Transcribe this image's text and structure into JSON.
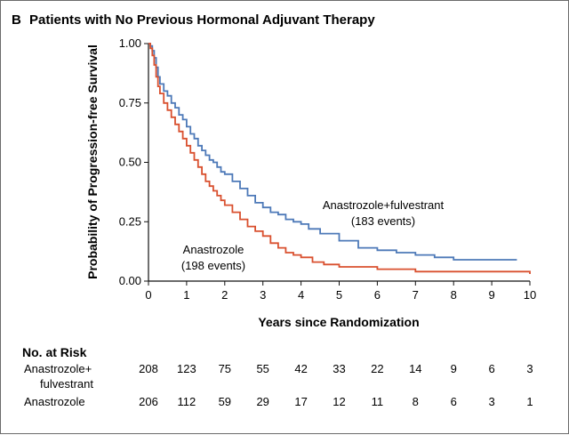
{
  "figure": {
    "panel_letter": "B",
    "title": "Patients with No Previous Hormonal Adjuvant Therapy"
  },
  "chart_data": {
    "type": "line",
    "title": "Patients with No Previous Hormonal Adjuvant Therapy",
    "xlabel": "Years since Randomization",
    "ylabel": "Probability of Progression-free Survival",
    "xlim": [
      0,
      10
    ],
    "ylim": [
      0,
      1
    ],
    "x_ticks": [
      "0",
      "1",
      "2",
      "3",
      "4",
      "5",
      "6",
      "7",
      "8",
      "9",
      "10"
    ],
    "y_ticks": [
      "0.00",
      "0.25",
      "0.50",
      "0.75",
      "1.00"
    ],
    "grid": false,
    "legend": "none",
    "series": [
      {
        "name": "Anastrozole+fulvestrant",
        "events_label": "(183 events)",
        "color": "#4d79b8",
        "x": [
          0,
          0.05,
          0.1,
          0.15,
          0.2,
          0.25,
          0.3,
          0.4,
          0.5,
          0.6,
          0.7,
          0.8,
          0.9,
          1.0,
          1.1,
          1.2,
          1.3,
          1.4,
          1.5,
          1.6,
          1.7,
          1.8,
          1.9,
          2.0,
          2.2,
          2.4,
          2.6,
          2.8,
          3.0,
          3.2,
          3.4,
          3.6,
          3.8,
          4.0,
          4.2,
          4.5,
          5.0,
          5.5,
          6.0,
          6.5,
          7.0,
          7.5,
          8.0,
          8.5,
          9.0,
          9.66
        ],
        "y": [
          1.0,
          0.99,
          0.97,
          0.94,
          0.9,
          0.86,
          0.83,
          0.8,
          0.78,
          0.75,
          0.73,
          0.7,
          0.68,
          0.65,
          0.62,
          0.6,
          0.57,
          0.55,
          0.53,
          0.51,
          0.5,
          0.48,
          0.46,
          0.45,
          0.42,
          0.39,
          0.36,
          0.33,
          0.31,
          0.29,
          0.28,
          0.26,
          0.25,
          0.24,
          0.22,
          0.2,
          0.17,
          0.14,
          0.13,
          0.12,
          0.11,
          0.1,
          0.09,
          0.09,
          0.09,
          0.09
        ]
      },
      {
        "name": "Anastrozole",
        "events_label": "(198 events)",
        "color": "#d9502f",
        "x": [
          0,
          0.05,
          0.1,
          0.15,
          0.2,
          0.25,
          0.3,
          0.4,
          0.5,
          0.6,
          0.7,
          0.8,
          0.9,
          1.0,
          1.1,
          1.2,
          1.3,
          1.4,
          1.5,
          1.6,
          1.7,
          1.8,
          1.9,
          2.0,
          2.2,
          2.4,
          2.6,
          2.8,
          3.0,
          3.2,
          3.4,
          3.6,
          3.8,
          4.0,
          4.3,
          4.6,
          5.0,
          5.5,
          6.0,
          6.5,
          7.0,
          7.5,
          8.0,
          8.5,
          9.0,
          9.5,
          10.0
        ],
        "y": [
          1.0,
          0.98,
          0.95,
          0.91,
          0.86,
          0.82,
          0.79,
          0.75,
          0.72,
          0.69,
          0.66,
          0.63,
          0.6,
          0.57,
          0.54,
          0.51,
          0.48,
          0.45,
          0.42,
          0.4,
          0.38,
          0.36,
          0.34,
          0.32,
          0.29,
          0.26,
          0.23,
          0.21,
          0.19,
          0.16,
          0.14,
          0.12,
          0.11,
          0.1,
          0.08,
          0.07,
          0.06,
          0.06,
          0.05,
          0.05,
          0.04,
          0.04,
          0.04,
          0.04,
          0.04,
          0.04,
          0.03
        ]
      }
    ]
  },
  "risk_table": {
    "heading": "No. at Risk",
    "rows": [
      {
        "label_line1": "Anastrozole+",
        "label_line2": "fulvestrant",
        "values": [
          "208",
          "123",
          "75",
          "55",
          "42",
          "33",
          "22",
          "14",
          "9",
          "6",
          "3"
        ]
      },
      {
        "label_line1": "Anastrozole",
        "label_line2": "",
        "values": [
          "206",
          "112",
          "59",
          "29",
          "17",
          "12",
          "11",
          "8",
          "6",
          "3",
          "1"
        ]
      }
    ]
  }
}
